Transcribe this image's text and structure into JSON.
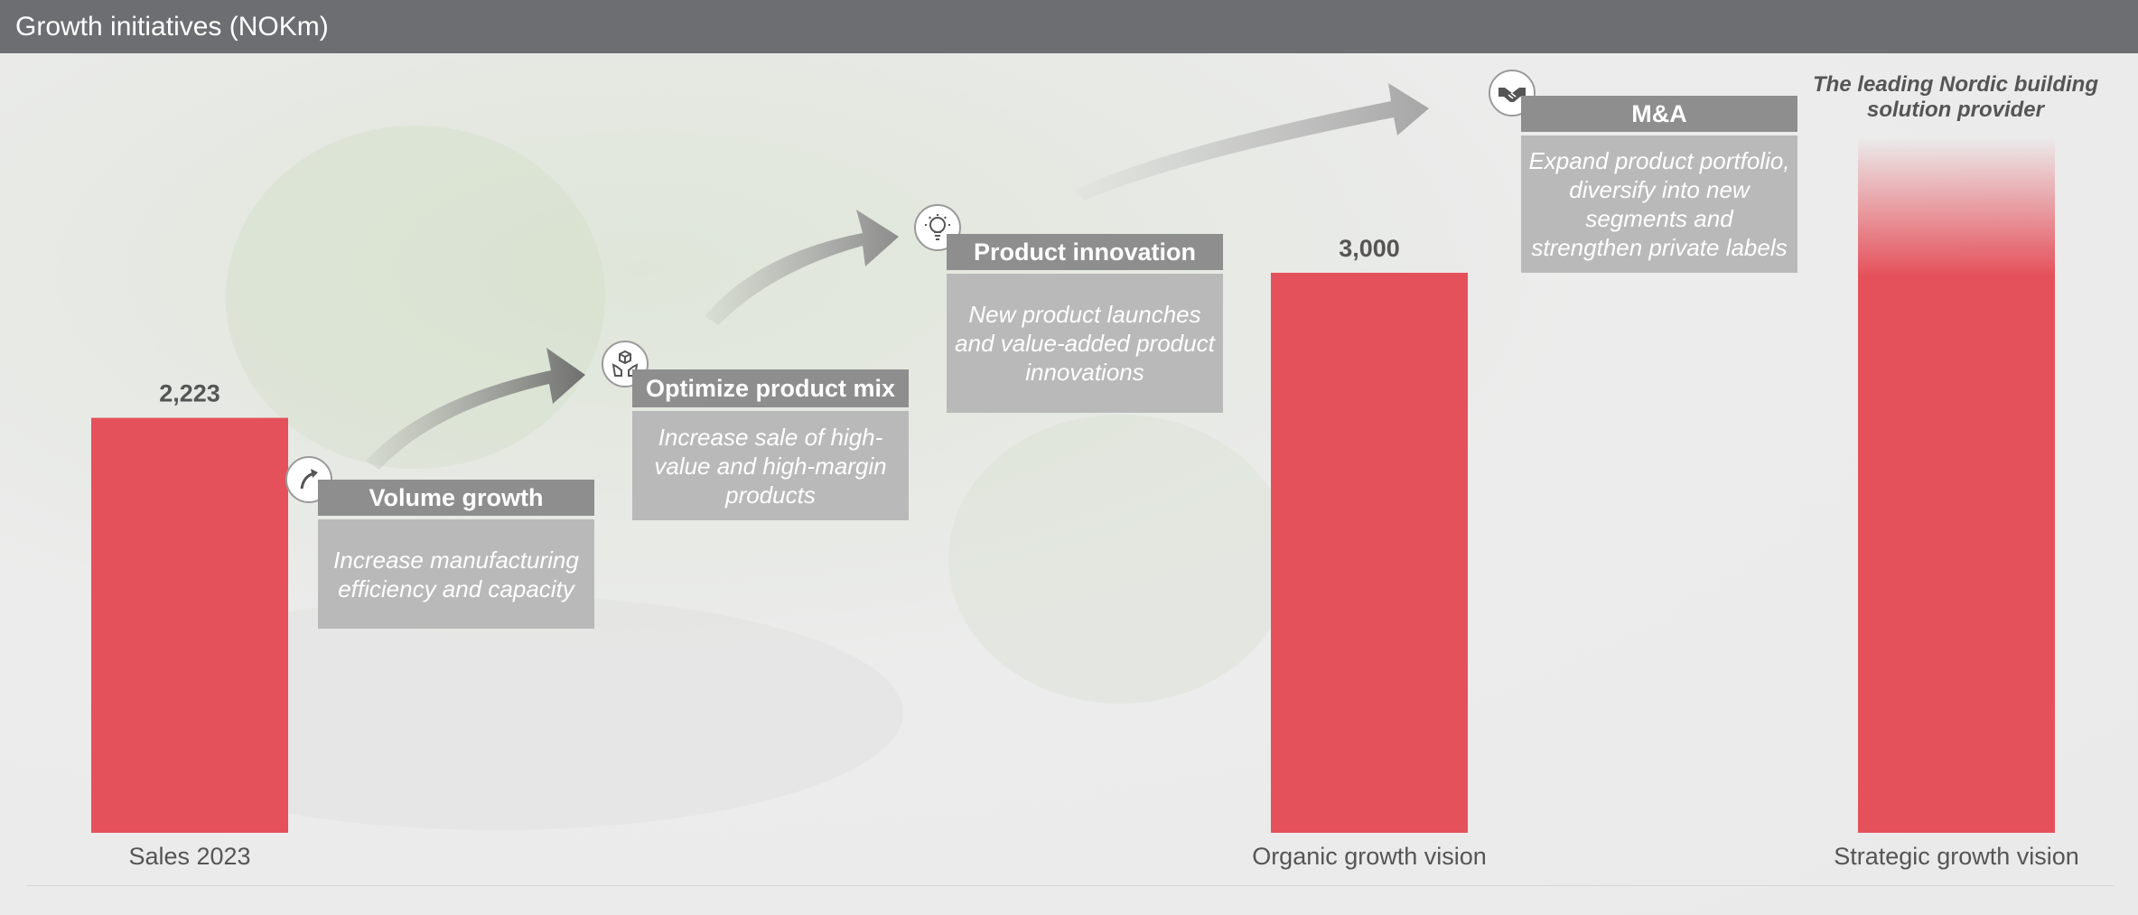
{
  "header": {
    "title": "Growth initiatives (NOKm)"
  },
  "colors": {
    "bar": "#e5515b",
    "header": "#6d6e71",
    "box_title": "#8e8e8e",
    "box_desc": "#b9b9b9"
  },
  "chart_data": {
    "type": "bar",
    "categories": [
      "Sales 2023",
      "Organic growth vision",
      "Strategic growth vision"
    ],
    "values": [
      2223,
      3000,
      null
    ],
    "data_labels": [
      "2,223",
      "3,000",
      ""
    ],
    "ylim": [
      0,
      3000
    ]
  },
  "initiatives": [
    {
      "title": "Volume growth",
      "description": "Increase manufacturing efficiency and capacity",
      "icon": "arrow-up-right-icon"
    },
    {
      "title": "Optimize product mix",
      "description": "Increase sale of high-value and high-margin products",
      "icon": "box-hands-icon"
    },
    {
      "title": "Product innovation",
      "description": "New product launches and value-added product innovations",
      "icon": "lightbulb-icon"
    },
    {
      "title": "M&A",
      "description": "Expand product portfolio, diversify into new segments and strengthen private labels",
      "icon": "handshake-icon"
    }
  ],
  "vision": {
    "title": "The leading Nordic building solution provider"
  }
}
